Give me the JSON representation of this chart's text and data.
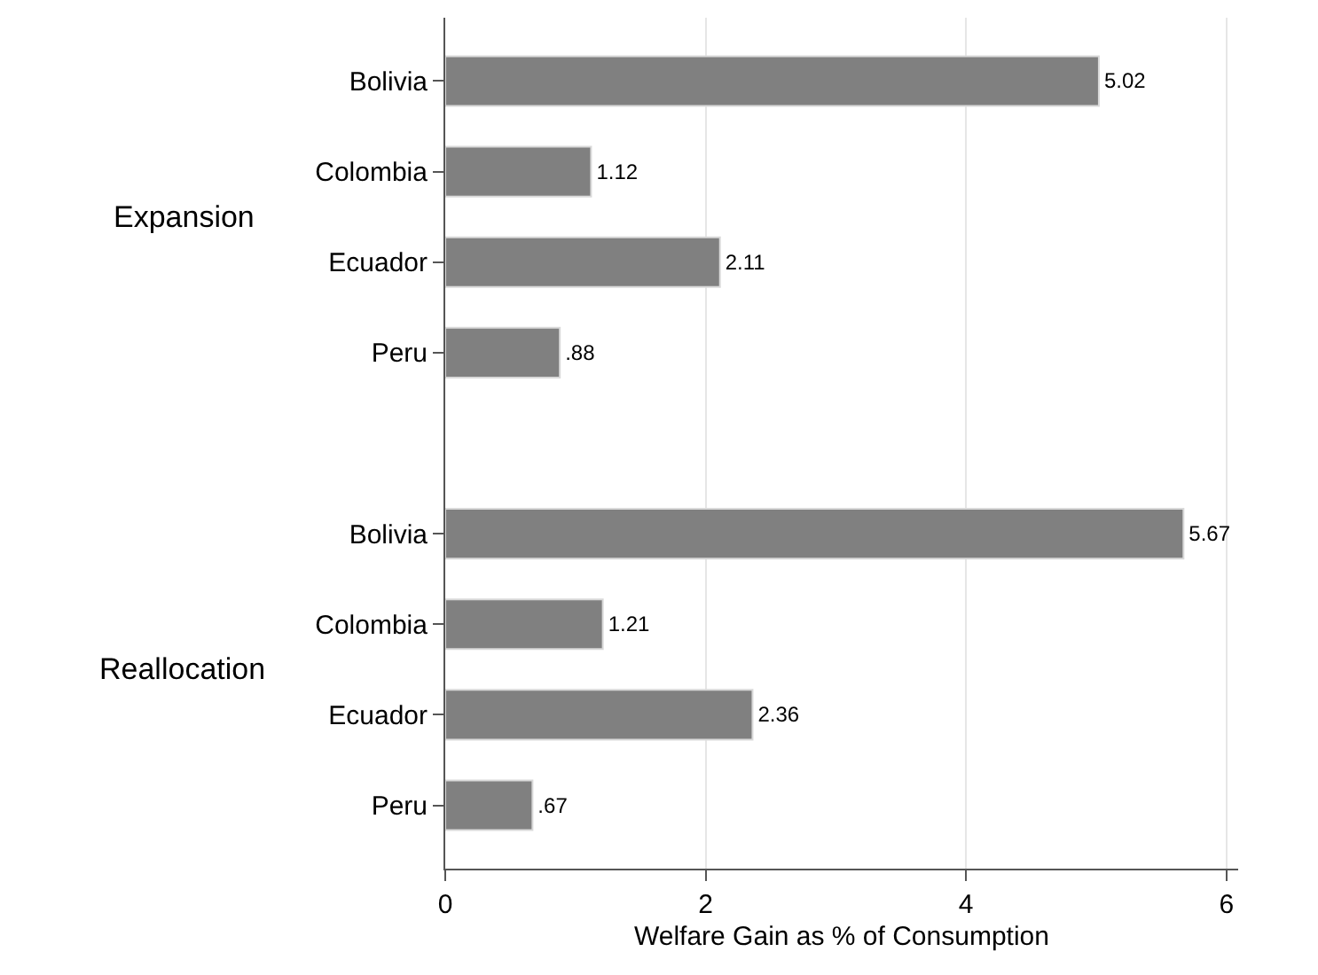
{
  "chart_data": {
    "type": "bar",
    "orientation": "horizontal",
    "categories": [
      "Bolivia",
      "Colombia",
      "Ecuador",
      "Peru",
      null,
      "Bolivia",
      "Colombia",
      "Ecuador",
      "Peru"
    ],
    "values": [
      5.02,
      1.12,
      2.11,
      0.88,
      null,
      5.67,
      1.21,
      2.36,
      0.67
    ],
    "value_labels": [
      "5.02",
      "1.12",
      "2.11",
      ".88",
      null,
      "5.67",
      "1.21",
      "2.36",
      ".67"
    ],
    "color": "#808080",
    "xlabel": "Welfare Gain as % of Consumption",
    "xlim": [
      0,
      6.09
    ],
    "xticks": [
      0,
      2,
      4,
      6
    ],
    "grid": "x",
    "legend": false,
    "annotations": [
      "Expansion",
      "Reallocation"
    ]
  }
}
